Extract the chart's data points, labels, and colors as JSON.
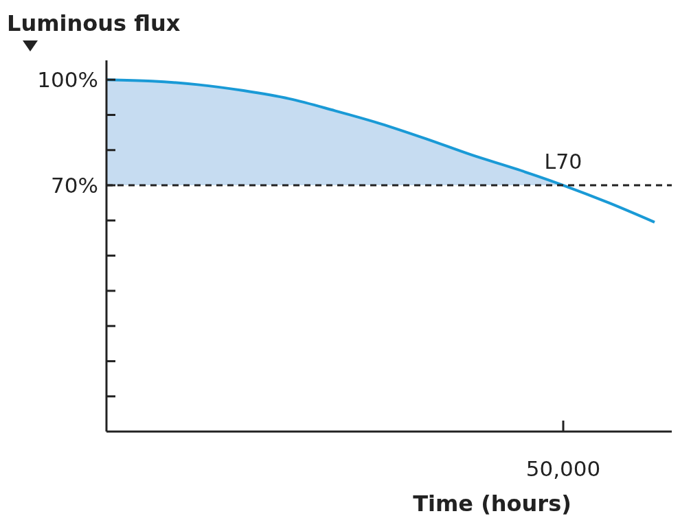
{
  "chart_data": {
    "type": "line",
    "ylabel": "Luminous flux",
    "xlabel": "Time (hours)",
    "categories": [
      null,
      null,
      null,
      null,
      null,
      null,
      null,
      null,
      null,
      null,
      "50,000",
      null,
      null
    ],
    "series": [
      {
        "color": "#1a9ad6",
        "values": [
          100,
          99.6,
          98.6,
          96.9,
          94.6,
          91.2,
          87.5,
          83.2,
          78.6,
          74.5,
          70,
          65,
          59.5
        ],
        "lower": [
          70,
          70,
          70,
          70,
          70,
          70,
          70,
          70,
          70,
          70,
          70,
          null,
          null
        ],
        "upper": [
          100,
          99.6,
          98.6,
          96.9,
          94.6,
          91.2,
          87.5,
          83.2,
          78.6,
          74.5,
          70,
          null,
          null
        ]
      }
    ],
    "ylim": [
      0,
      105.5
    ],
    "yticks": [
      {
        "value": 100,
        "label": "100%"
      },
      {
        "value": 90,
        "label": null
      },
      {
        "value": 80,
        "label": null
      },
      {
        "value": 70,
        "label": "70%"
      },
      {
        "value": 60,
        "label": null
      },
      {
        "value": 50,
        "label": null
      },
      {
        "value": 40,
        "label": null
      },
      {
        "value": 30,
        "label": null
      },
      {
        "value": 20,
        "label": null
      },
      {
        "value": 10,
        "label": null
      }
    ],
    "ref_lines": [
      {
        "axis": "y",
        "value": 70,
        "line_style": "dashed",
        "color": "#222222"
      }
    ],
    "annotations": [
      {
        "text": "L70",
        "x": "50,000",
        "y": 70
      }
    ],
    "grid": false,
    "marker": "none",
    "line_style": "solid"
  }
}
